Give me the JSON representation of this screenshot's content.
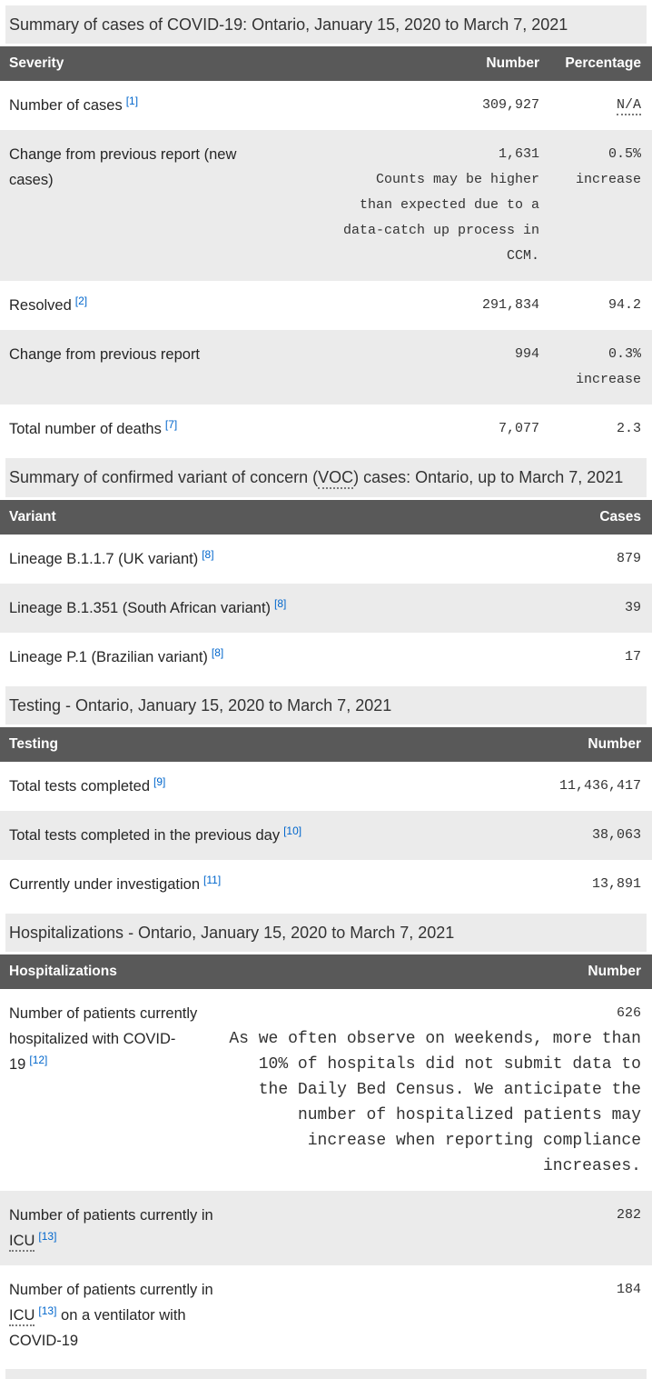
{
  "colors": {
    "header_bg": "#595959",
    "band_bg": "#ebebeb",
    "alt_row_bg": "#ebebeb",
    "link_blue": "#0066cc",
    "body_text": "#262626",
    "mono_text": "#333333",
    "header_text": "#ffffff",
    "page_bg": "#ffffff"
  },
  "icons": {
    "dotted_underline_abbr": "abbreviation-with-tooltip"
  },
  "tables": [
    {
      "caption": {
        "text": "Summary of cases of COVID-19: Ontario, January 15, 2020 to March 7, 2021"
      },
      "head": [
        "Severity",
        "Number",
        "Percentage"
      ],
      "rows": [
        {
          "pre": "Number of cases",
          "ref": "[1]",
          "number": "309,927",
          "pct_abbr": "N/A"
        },
        {
          "pre": "Change from previous report (new cases)",
          "number": "1,631",
          "note": "Counts may be higher than expected due to a data-catch up process in CCM.",
          "pct": "0.5% increase"
        },
        {
          "pre": "Resolved",
          "ref": "[2]",
          "number": "291,834",
          "pct": "94.2"
        },
        {
          "pre": "Change from previous report",
          "number": "994",
          "pct": "0.3% increase"
        },
        {
          "pre": "Total number of deaths",
          "ref": "[7]",
          "number": "7,077",
          "pct": "2.3"
        }
      ]
    },
    {
      "caption": {
        "pre": "Summary of confirmed variant of concern (",
        "abbr": "VOC",
        "post": ") cases: Ontario, up to March 7, 2021"
      },
      "head": [
        "Variant",
        "Cases"
      ],
      "rows": [
        {
          "pre": "Lineage B.1.1.7 (UK variant)",
          "ref": "[8]",
          "number": "879"
        },
        {
          "pre": "Lineage B.1.351 (South African variant)",
          "ref": "[8]",
          "number": "39"
        },
        {
          "pre": "Lineage P.1 (Brazilian variant)",
          "ref": "[8]",
          "number": "17"
        }
      ]
    },
    {
      "caption": {
        "text": "Testing - Ontario, January 15, 2020 to March 7, 2021"
      },
      "head": [
        "Testing",
        "Number"
      ],
      "rows": [
        {
          "pre": "Total tests completed",
          "ref": "[9]",
          "number": "11,436,417"
        },
        {
          "pre": "Total tests completed in the previous day",
          "ref": "[10]",
          "number": "38,063"
        },
        {
          "pre": "Currently under investigation",
          "ref": "[11]",
          "number": "13,891"
        }
      ]
    },
    {
      "caption": {
        "text": "Hospitalizations - Ontario, January 15, 2020 to March 7, 2021"
      },
      "head": [
        "Hospitalizations",
        "Number"
      ],
      "rows": [
        {
          "pre": "Number of patients currently hospitalized with COVID-19",
          "ref": "[12]",
          "number": "626",
          "note": "As we often observe on weekends, more than 10% of hospitals did not submit data to the Daily Bed Census. We anticipate the number of hospitalized patients may increase when reporting compliance increases."
        },
        {
          "pre": "Number of patients currently in ",
          "abbr": "ICU",
          "ref": "[13]",
          "number": "282"
        },
        {
          "pre": "Number of patients currently in ",
          "abbr": "ICU",
          "ref": "[13]",
          "post": " on a ventilator with COVID-19",
          "number": "184"
        }
      ]
    }
  ]
}
